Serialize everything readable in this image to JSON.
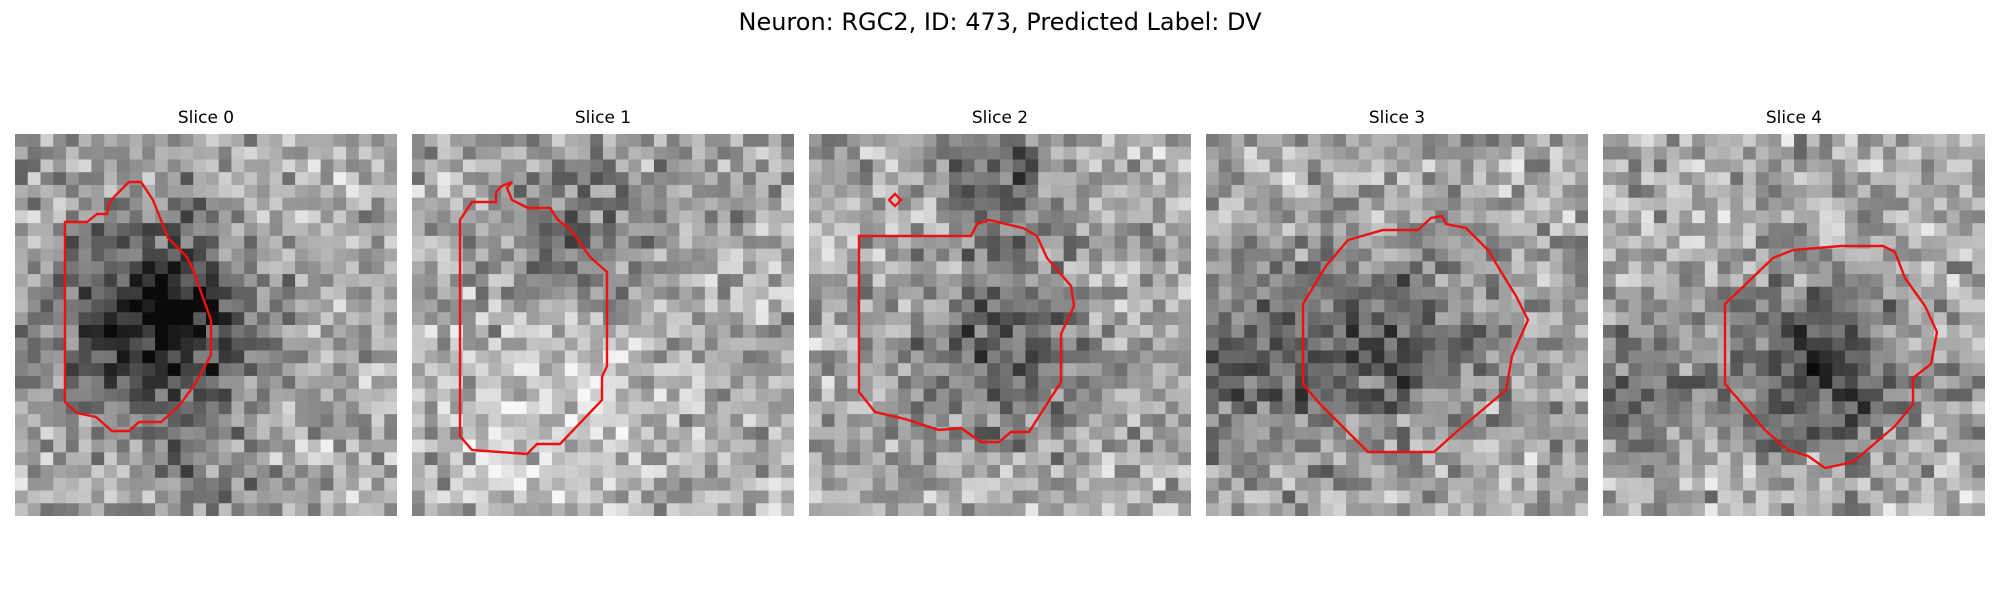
{
  "figure": {
    "title": "Neuron: RGC2, ID: 473, Predicted Label: DV",
    "contour_color": "#ee1111"
  },
  "panels": [
    {
      "title": "Slice 0"
    },
    {
      "title": "Slice 1"
    },
    {
      "title": "Slice 2"
    },
    {
      "title": "Slice 3"
    },
    {
      "title": "Slice 4"
    }
  ]
}
